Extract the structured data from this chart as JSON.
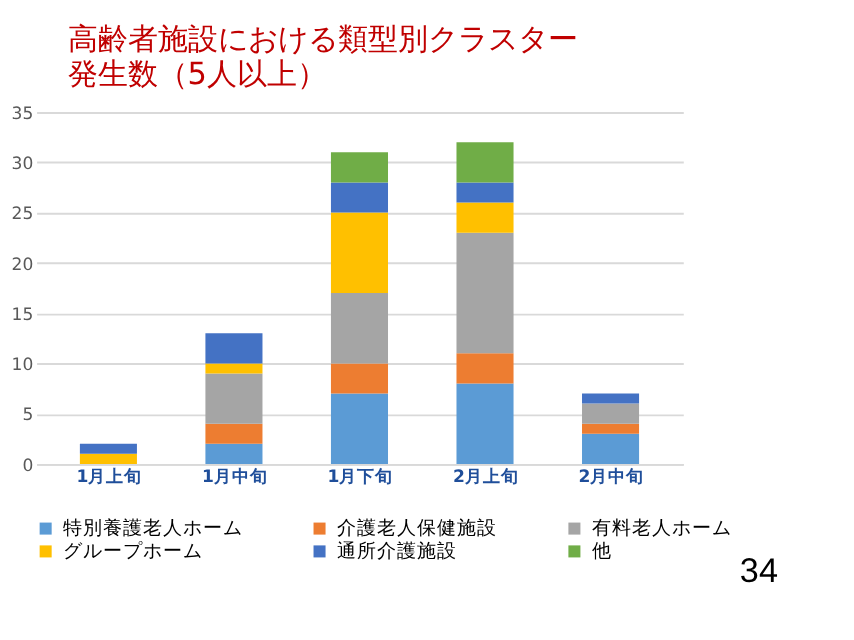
{
  "chart_data": {
    "type": "bar",
    "stacked": true,
    "title": "高齢者施設における類型別クラスター",
    "subtitle": "発生数（5人以上）",
    "categories": [
      "1月上旬",
      "1月中旬",
      "1月下旬",
      "2月上旬",
      "2月中旬"
    ],
    "series": [
      {
        "name": "特別養護老人ホーム",
        "color": "#5b9bd5",
        "values": [
          0,
          2,
          7,
          8,
          3
        ]
      },
      {
        "name": "介護老人保健施設",
        "color": "#ed7d31",
        "values": [
          0,
          2,
          3,
          3,
          1
        ]
      },
      {
        "name": "有料老人ホーム",
        "color": "#a5a5a5",
        "values": [
          0,
          5,
          7,
          12,
          2
        ]
      },
      {
        "name": "グループホーム",
        "color": "#ffc000",
        "values": [
          1,
          1,
          8,
          3,
          0
        ]
      },
      {
        "name": "通所介護施設",
        "color": "#4472c4",
        "values": [
          1,
          3,
          3,
          2,
          1
        ]
      },
      {
        "name": "他",
        "color": "#70ad47",
        "values": [
          0,
          0,
          3,
          4,
          0
        ]
      }
    ],
    "ylim": [
      0,
      35
    ],
    "yticks": [
      0,
      5,
      10,
      15,
      20,
      25,
      30,
      35
    ],
    "grid": "y",
    "legend": "bottom",
    "annotations": [
      "34"
    ]
  }
}
